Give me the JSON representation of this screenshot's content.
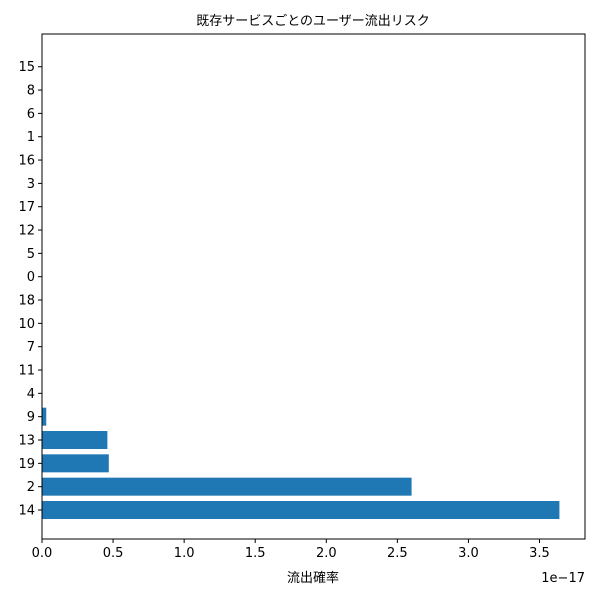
{
  "chart_data": {
    "type": "bar",
    "orientation": "horizontal",
    "title": "既存サービスごとのユーザー流出リスク",
    "xlabel": "流出確率",
    "ylabel": "",
    "x_offset_label": "1e−17",
    "xlim": [
      0,
      3.82
    ],
    "x_ticks": [
      "0.0",
      "0.5",
      "1.0",
      "1.5",
      "2.0",
      "2.5",
      "3.0",
      "3.5"
    ],
    "categories": [
      "14",
      "2",
      "19",
      "13",
      "9",
      "4",
      "11",
      "7",
      "10",
      "18",
      "0",
      "5",
      "12",
      "17",
      "3",
      "16",
      "1",
      "6",
      "8",
      "15"
    ],
    "values": [
      3.64,
      2.6,
      0.47,
      0.46,
      0.03,
      0,
      0,
      0,
      0,
      0,
      0,
      0,
      0,
      0,
      0,
      0,
      0,
      0,
      0,
      0
    ],
    "value_scale": "1e-17",
    "bar_color": "#1f77b4",
    "grid": false,
    "legend": "none"
  }
}
